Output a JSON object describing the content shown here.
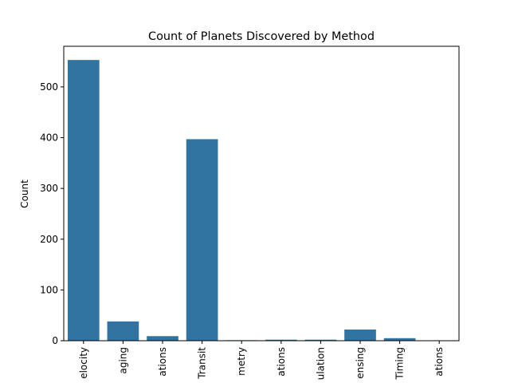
{
  "chart_data": {
    "type": "bar",
    "title": "Count of Planets Discovered by Method",
    "xlabel": "",
    "ylabel": "Count",
    "categories": [
      "elocity",
      "aging",
      "ations",
      "Transit",
      "metry",
      "ations",
      "ulation",
      "ensing",
      "Timing",
      "ations"
    ],
    "values": [
      553,
      38,
      9,
      397,
      1,
      2,
      2,
      22,
      5,
      0
    ],
    "ylim": [
      0,
      580
    ],
    "yticks": [
      0,
      100,
      200,
      300,
      400,
      500
    ],
    "grid": false,
    "bar_color": "#3274a1"
  }
}
